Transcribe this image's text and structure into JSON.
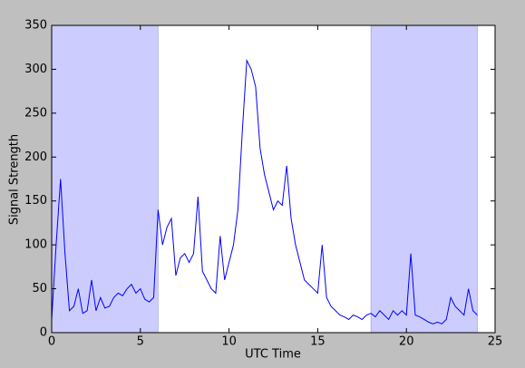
{
  "chart_data": {
    "type": "line",
    "x_label": "UTC Time",
    "y_label": "Signal Strength",
    "xlim": [
      0,
      25
    ],
    "ylim": [
      0,
      350
    ],
    "xticks": [
      0,
      5,
      10,
      15,
      20,
      25
    ],
    "yticks": [
      0,
      50,
      100,
      150,
      200,
      250,
      300,
      350
    ],
    "shaded_regions": [
      [
        0,
        6
      ],
      [
        18,
        24
      ]
    ],
    "shade_color": "#ccccff",
    "x": [
      0,
      0.25,
      0.5,
      0.75,
      1,
      1.25,
      1.5,
      1.75,
      2,
      2.25,
      2.5,
      2.75,
      3,
      3.25,
      3.5,
      3.75,
      4,
      4.25,
      4.5,
      4.75,
      5,
      5.25,
      5.5,
      5.75,
      6,
      6.25,
      6.5,
      6.75,
      7,
      7.25,
      7.5,
      7.75,
      8,
      8.25,
      8.5,
      8.75,
      9,
      9.25,
      9.5,
      9.75,
      10,
      10.25,
      10.5,
      10.75,
      11,
      11.25,
      11.5,
      11.75,
      12,
      12.25,
      12.5,
      12.75,
      13,
      13.25,
      13.5,
      13.75,
      14,
      14.25,
      14.5,
      14.75,
      15,
      15.25,
      15.5,
      15.75,
      16,
      16.25,
      16.5,
      16.75,
      17,
      17.25,
      17.5,
      17.75,
      18,
      18.25,
      18.5,
      18.75,
      19,
      19.25,
      19.5,
      19.75,
      20,
      20.25,
      20.5,
      20.75,
      21,
      21.25,
      21.5,
      21.75,
      22,
      22.25,
      22.5,
      22.75,
      23,
      23.25,
      23.5,
      23.75,
      24
    ],
    "series": [
      {
        "color": "#0000ff",
        "values": [
          15,
          100,
          175,
          90,
          25,
          30,
          50,
          22,
          25,
          60,
          25,
          40,
          28,
          30,
          40,
          45,
          42,
          50,
          55,
          45,
          50,
          38,
          35,
          40,
          140,
          100,
          120,
          130,
          65,
          85,
          90,
          80,
          90,
          155,
          70,
          60,
          50,
          45,
          110,
          60,
          80,
          100,
          140,
          230,
          310,
          300,
          280,
          210,
          180,
          160,
          140,
          150,
          145,
          190,
          130,
          100,
          80,
          60,
          55,
          50,
          45,
          100,
          40,
          30,
          25,
          20,
          18,
          15,
          20,
          18,
          15,
          20,
          22,
          18,
          25,
          20,
          15,
          25,
          20,
          25,
          20,
          90,
          20,
          18,
          15,
          12,
          10,
          12,
          10,
          15,
          40,
          30,
          25,
          20,
          50,
          25,
          20
        ]
      }
    ]
  }
}
